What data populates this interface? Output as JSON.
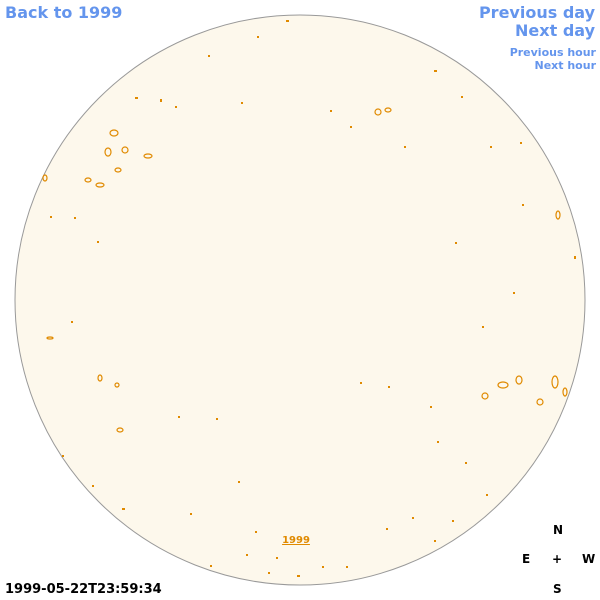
{
  "navigation": {
    "back": "Back to 1999",
    "previous_day": "Previous day",
    "next_day": "Next day",
    "previous_hour": "Previous hour",
    "next_hour": "Next hour"
  },
  "image": {
    "year_link": "1999",
    "timestamp": "1999-05-22T23:59:34"
  },
  "compass": {
    "north": "N",
    "east": "E",
    "center": "+",
    "west": "W",
    "south": "S"
  }
}
